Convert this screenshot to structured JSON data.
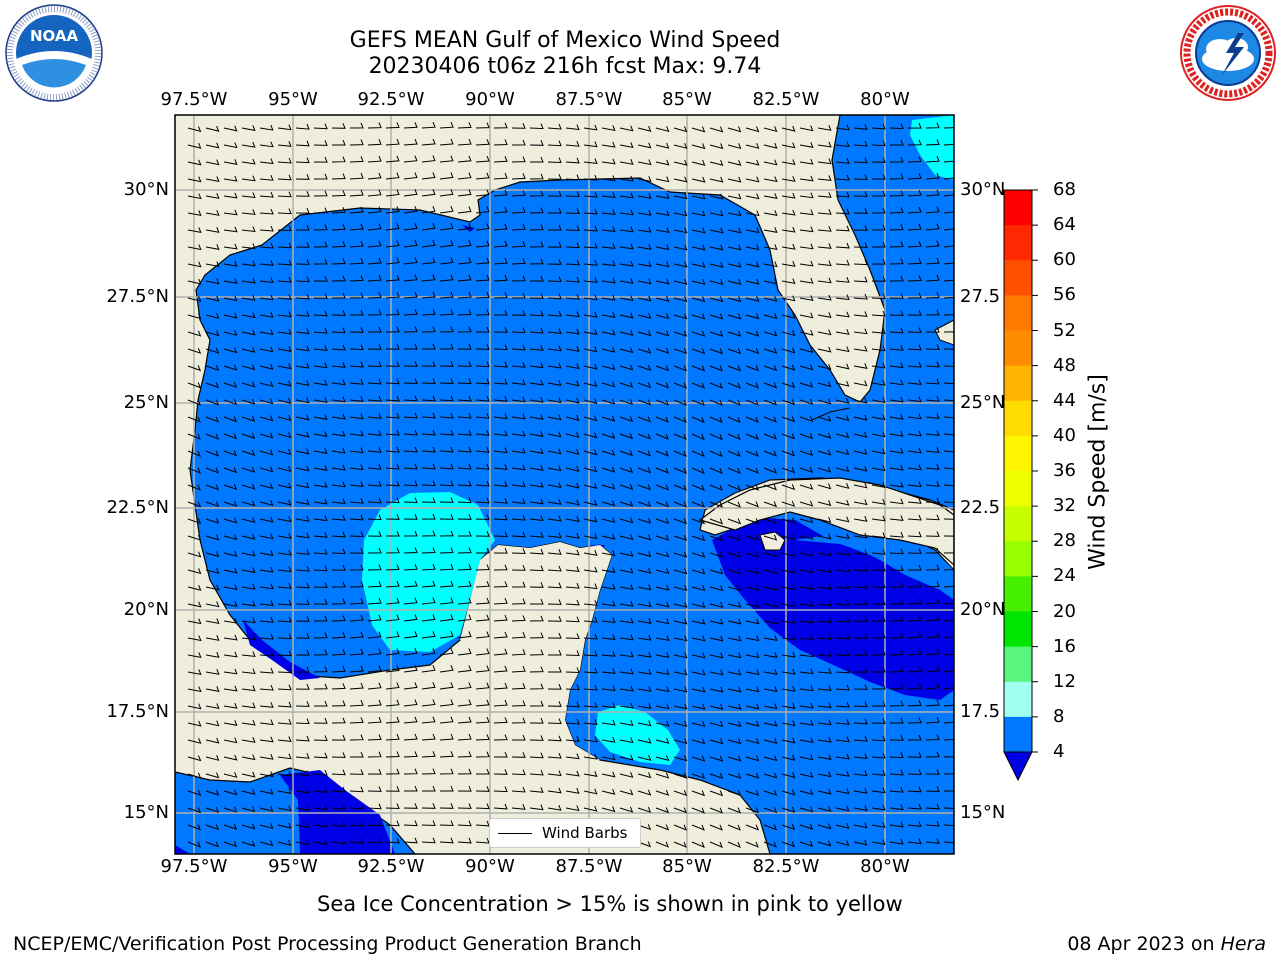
{
  "title": {
    "line1": "GEFS MEAN Gulf of Mexico Wind Speed",
    "line2": "20230406 t06z 216h fcst   Max: 9.74"
  },
  "logos": {
    "noaa": {
      "text": "NOAA",
      "ring_text": "NATIONAL OCEANIC AND ATMOSPHERIC ADMINISTRATION · U.S. DEPARTMENT OF COMMERCE"
    },
    "nws": {
      "ring_text": "NATIONAL WEATHER SERVICE"
    }
  },
  "map": {
    "lon_ticks": [
      "97.5°W",
      "95°W",
      "92.5°W",
      "90°W",
      "87.5°W",
      "85°W",
      "82.5°W",
      "80°W"
    ],
    "lat_ticks_left": [
      "30°N",
      "27.5°N",
      "25°N",
      "22.5°N",
      "20°N",
      "17.5°N",
      "15°N"
    ],
    "lat_ticks_right": [
      "30°N",
      "27.5",
      "25°N",
      "22.5",
      "20°N",
      "17.5",
      "15°N"
    ],
    "legend_label": "Wind Barbs",
    "colors": {
      "land": "#efeedd",
      "c4_8": "#0078ff",
      "c0_4": "#0000e6",
      "c8_12": "#00ffff",
      "grid": "#b0b0b0"
    }
  },
  "colorbar": {
    "label": "Wind Speed [m/s]",
    "ticks": [
      "68",
      "64",
      "60",
      "56",
      "52",
      "48",
      "44",
      "40",
      "36",
      "32",
      "28",
      "24",
      "20",
      "16",
      "12",
      "8",
      "4"
    ],
    "colors_top_to_bottom": [
      "#ff0000",
      "#ff2800",
      "#ff5000",
      "#ff7800",
      "#ff8c00",
      "#ffb400",
      "#ffdc00",
      "#fff500",
      "#f0ff00",
      "#c8ff00",
      "#96ff00",
      "#46ee00",
      "#00e600",
      "#5af57d",
      "#a0fff0",
      "#50ffff",
      "#00ffff",
      "#0078ff"
    ],
    "extend_color": "#0000e6"
  },
  "footer": {
    "note": "Sea Ice Concentration > 15% is shown in pink to yellow",
    "credit": "NCEP/EMC/Verification Post Processing Product Generation Branch",
    "date": "08 Apr 2023 on",
    "machine": "Hera"
  }
}
